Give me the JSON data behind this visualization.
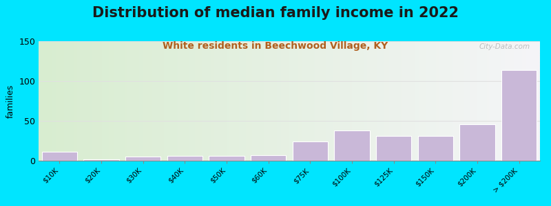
{
  "title": "Distribution of median family income in 2022",
  "subtitle": "White residents in Beechwood Village, KY",
  "categories": [
    "$10K",
    "$20K",
    "$30K",
    "$40K",
    "$50K",
    "$60K",
    "$75K",
    "$100K",
    "$125K",
    "$150K",
    "$200K",
    "> $200K"
  ],
  "values": [
    11,
    2,
    5,
    6,
    6,
    7,
    24,
    38,
    31,
    31,
    46,
    114
  ],
  "bar_color": "#c9b8d8",
  "bar_edge_color": "#c9b8d8",
  "title_fontsize": 15,
  "subtitle_fontsize": 10,
  "subtitle_color": "#b06020",
  "ylabel": "families",
  "ylabel_fontsize": 9,
  "ylim": [
    0,
    150
  ],
  "yticks": [
    0,
    50,
    100,
    150
  ],
  "background_color": "#00e5ff",
  "plot_bg_left_color": "#d8edd0",
  "plot_bg_right_color": "#f5f5f8",
  "watermark": "City-Data.com",
  "tick_label_fontsize": 7.5,
  "grid_color": "#e0e0e0",
  "title_color": "#1a1a1a"
}
